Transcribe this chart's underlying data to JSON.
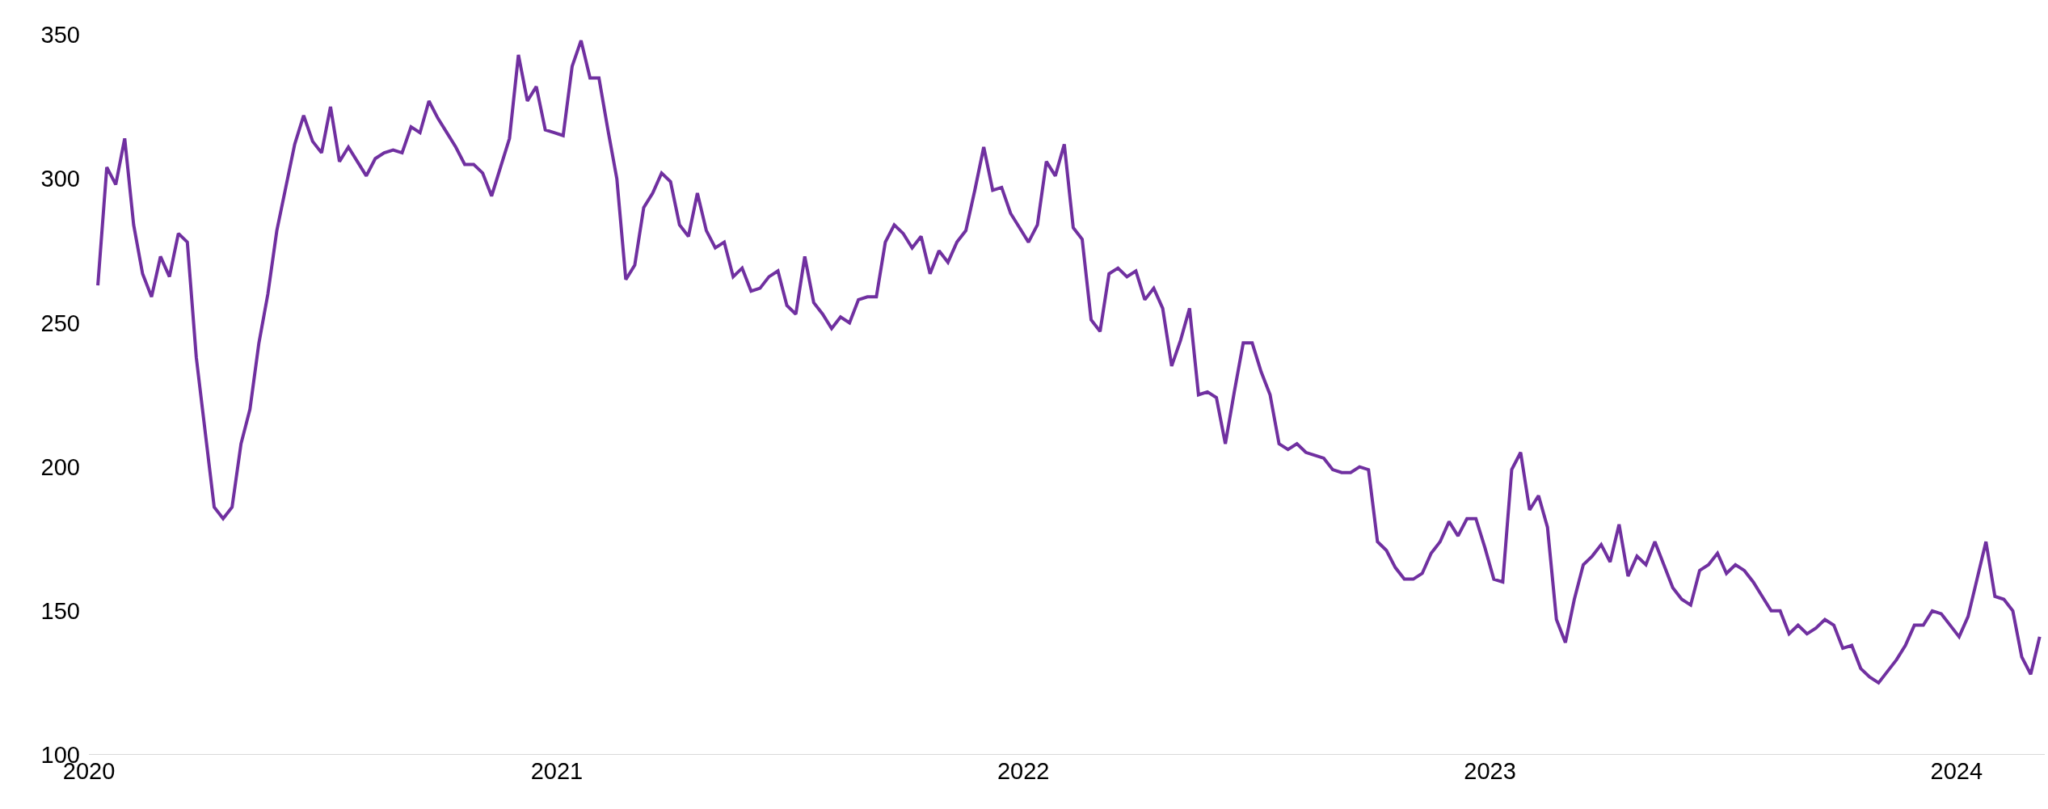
{
  "chart_data": {
    "type": "line",
    "x": [
      "2020-01-08",
      "2020-01-15",
      "2020-01-22",
      "2020-01-29",
      "2020-02-05",
      "2020-02-12",
      "2020-02-19",
      "2020-02-26",
      "2020-03-04",
      "2020-03-11",
      "2020-03-18",
      "2020-03-25",
      "2020-04-01",
      "2020-04-08",
      "2020-04-15",
      "2020-04-22",
      "2020-04-29",
      "2020-05-06",
      "2020-05-13",
      "2020-05-20",
      "2020-05-27",
      "2020-06-03",
      "2020-06-10",
      "2020-06-17",
      "2020-06-24",
      "2020-07-01",
      "2020-07-08",
      "2020-07-15",
      "2020-07-22",
      "2020-07-29",
      "2020-08-05",
      "2020-08-12",
      "2020-08-19",
      "2020-08-26",
      "2020-09-02",
      "2020-09-09",
      "2020-09-16",
      "2020-09-23",
      "2020-09-30",
      "2020-10-07",
      "2020-10-14",
      "2020-10-21",
      "2020-10-28",
      "2020-11-04",
      "2020-11-11",
      "2020-11-18",
      "2020-11-25",
      "2020-12-02",
      "2020-12-09",
      "2020-12-16",
      "2020-12-23",
      "2020-12-30",
      "2021-01-06",
      "2021-01-13",
      "2021-01-20",
      "2021-01-27",
      "2021-02-03",
      "2021-02-10",
      "2021-02-17",
      "2021-02-24",
      "2021-03-03",
      "2021-03-10",
      "2021-03-17",
      "2021-03-24",
      "2021-03-31",
      "2021-04-07",
      "2021-04-14",
      "2021-04-21",
      "2021-04-28",
      "2021-05-05",
      "2021-05-12",
      "2021-05-19",
      "2021-05-26",
      "2021-06-02",
      "2021-06-09",
      "2021-06-16",
      "2021-06-23",
      "2021-06-30",
      "2021-07-07",
      "2021-07-14",
      "2021-07-21",
      "2021-07-28",
      "2021-08-04",
      "2021-08-11",
      "2021-08-18",
      "2021-08-25",
      "2021-09-01",
      "2021-09-08",
      "2021-09-15",
      "2021-09-22",
      "2021-09-29",
      "2021-10-06",
      "2021-10-13",
      "2021-10-20",
      "2021-10-27",
      "2021-11-03",
      "2021-11-10",
      "2021-11-17",
      "2021-11-24",
      "2021-12-01",
      "2021-12-08",
      "2021-12-15",
      "2021-12-22",
      "2021-12-29",
      "2022-01-05",
      "2022-01-12",
      "2022-01-19",
      "2022-01-26",
      "2022-02-02",
      "2022-02-09",
      "2022-02-16",
      "2022-02-23",
      "2022-03-02",
      "2022-03-09",
      "2022-03-16",
      "2022-03-23",
      "2022-03-30",
      "2022-04-06",
      "2022-04-13",
      "2022-04-20",
      "2022-04-27",
      "2022-05-04",
      "2022-05-11",
      "2022-05-18",
      "2022-05-25",
      "2022-06-01",
      "2022-06-08",
      "2022-06-15",
      "2022-06-22",
      "2022-06-29",
      "2022-07-06",
      "2022-07-13",
      "2022-07-20",
      "2022-07-27",
      "2022-08-03",
      "2022-08-10",
      "2022-08-17",
      "2022-08-24",
      "2022-08-31",
      "2022-09-07",
      "2022-09-14",
      "2022-09-21",
      "2022-09-28",
      "2022-10-05",
      "2022-10-12",
      "2022-10-19",
      "2022-10-26",
      "2022-11-02",
      "2022-11-09",
      "2022-11-16",
      "2022-11-23",
      "2022-11-30",
      "2022-12-07",
      "2022-12-14",
      "2022-12-21",
      "2022-12-28",
      "2023-01-04",
      "2023-01-11",
      "2023-01-18",
      "2023-01-25",
      "2023-02-01",
      "2023-02-08",
      "2023-02-15",
      "2023-02-22",
      "2023-03-01",
      "2023-03-08",
      "2023-03-15",
      "2023-03-22",
      "2023-03-29",
      "2023-04-05",
      "2023-04-12",
      "2023-04-19",
      "2023-04-26",
      "2023-05-03",
      "2023-05-10",
      "2023-05-17",
      "2023-05-24",
      "2023-05-31",
      "2023-06-07",
      "2023-06-14",
      "2023-06-21",
      "2023-06-28",
      "2023-07-05",
      "2023-07-12",
      "2023-07-19",
      "2023-07-26",
      "2023-08-02",
      "2023-08-09",
      "2023-08-16",
      "2023-08-23",
      "2023-08-30",
      "2023-09-06",
      "2023-09-13",
      "2023-09-20",
      "2023-09-27",
      "2023-10-04",
      "2023-10-11",
      "2023-10-18",
      "2023-10-25",
      "2023-11-01",
      "2023-11-08",
      "2023-11-15",
      "2023-11-22",
      "2023-11-29",
      "2023-12-06",
      "2023-12-13",
      "2023-12-20",
      "2023-12-27",
      "2024-01-03",
      "2024-01-10",
      "2024-01-17",
      "2024-01-24",
      "2024-01-31",
      "2024-02-07",
      "2024-02-14",
      "2024-02-21",
      "2024-02-28",
      "2024-03-06"
    ],
    "series": [
      {
        "color": "#7030a0",
        "values": [
          263,
          304,
          298,
          314,
          284,
          267,
          259,
          273,
          266,
          281,
          278,
          238,
          212,
          186,
          182,
          186,
          208,
          220,
          243,
          260,
          282,
          297,
          312,
          322,
          313,
          309,
          325,
          306,
          311,
          306,
          301,
          307,
          309,
          310,
          309,
          318,
          316,
          327,
          321,
          316,
          311,
          305,
          305,
          302,
          294,
          304,
          314,
          343,
          327,
          332,
          317,
          316,
          315,
          339,
          348,
          335,
          335,
          317,
          300,
          265,
          270,
          290,
          295,
          302,
          299,
          284,
          280,
          295,
          282,
          276,
          278,
          266,
          269,
          261,
          262,
          266,
          268,
          256,
          253,
          273,
          257,
          253,
          248,
          252,
          250,
          258,
          259,
          259,
          278,
          284,
          281,
          276,
          280,
          267,
          275,
          271,
          278,
          282,
          296,
          311,
          296,
          297,
          288,
          283,
          278,
          284,
          306,
          301,
          312,
          283,
          279,
          251,
          247,
          267,
          269,
          266,
          268,
          258,
          262,
          255,
          235,
          244,
          255,
          225,
          226,
          224,
          208,
          226,
          243,
          243,
          233,
          225,
          208,
          206,
          208,
          205,
          204,
          203,
          199,
          198,
          198,
          200,
          199,
          174,
          171,
          165,
          161,
          161,
          163,
          170,
          174,
          181,
          176,
          182,
          182,
          172,
          161,
          160,
          199,
          205,
          185,
          190,
          179,
          147,
          139,
          154,
          166,
          169,
          173,
          167,
          180,
          162,
          169,
          166,
          174,
          166,
          158,
          154,
          152,
          164,
          166,
          170,
          163,
          166,
          164,
          160,
          155,
          150,
          150,
          142,
          145,
          142,
          144,
          147,
          145,
          137,
          138,
          130,
          127,
          125,
          129,
          133,
          138,
          145,
          145,
          150,
          149,
          145,
          141,
          148,
          161,
          174,
          155,
          154,
          150,
          134,
          128,
          141
        ]
      }
    ],
    "xlim": [
      "2020-01-01",
      "2024-03-10"
    ],
    "xticks": [
      {
        "value": "2020-01-01",
        "label": "2020"
      },
      {
        "value": "2021-01-01",
        "label": "2021"
      },
      {
        "value": "2022-01-01",
        "label": "2022"
      },
      {
        "value": "2023-01-01",
        "label": "2023"
      },
      {
        "value": "2024-01-01",
        "label": "2024"
      }
    ],
    "ylim": [
      100,
      350
    ],
    "yticks": [
      100,
      150,
      200,
      250,
      300,
      350
    ],
    "grid": false,
    "marker": "none",
    "line_style": "solid"
  }
}
